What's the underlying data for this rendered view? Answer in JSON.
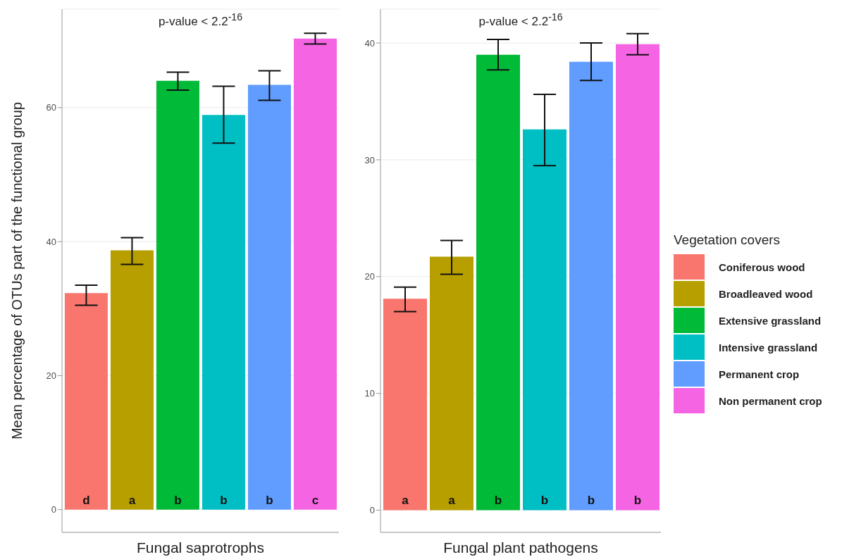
{
  "chart_data": [
    {
      "type": "bar",
      "xlabel": "Fungal saprotrophs",
      "ylabel": "Mean percentage of OTUs part of the functional group",
      "categories": [
        null
      ],
      "series": [
        {
          "color": "#f8766d",
          "values": [
            32.3
          ],
          "errors": [
            [
              30.5,
              33.5
            ]
          ]
        },
        {
          "color": "#b79f00",
          "values": [
            38.7
          ],
          "errors": [
            [
              36.6,
              40.6
            ]
          ]
        },
        {
          "color": "#00ba38",
          "values": [
            64.0
          ],
          "errors": [
            [
              62.6,
              65.3
            ]
          ]
        },
        {
          "color": "#00bfc4",
          "values": [
            58.9
          ],
          "errors": [
            [
              54.7,
              63.2
            ]
          ]
        },
        {
          "color": "#619cff",
          "values": [
            63.4
          ],
          "errors": [
            [
              61.1,
              65.5
            ]
          ]
        },
        {
          "color": "#f564e3",
          "values": [
            70.3
          ],
          "errors": [
            [
              69.5,
              71.1
            ]
          ]
        }
      ],
      "ylim": [
        -3.4,
        74.7
      ],
      "yticks": [
        0,
        20,
        40,
        60
      ],
      "grid": true,
      "tick_labels": "y",
      "annotations": [
        "p-value < 2.2$^{-16}$",
        "d",
        "a",
        "b",
        "b",
        "b",
        "c"
      ]
    },
    {
      "type": "bar",
      "xlabel": "Fungal plant pathogens",
      "legend_title": "Vegetation covers",
      "categories": [
        null
      ],
      "series": [
        {
          "name": "Coniferous wood",
          "color": "#f8766d",
          "values": [
            18.1
          ],
          "errors": [
            [
              17.0,
              19.1
            ]
          ]
        },
        {
          "name": "Broadleaved wood",
          "color": "#b79f00",
          "values": [
            21.7
          ],
          "errors": [
            [
              20.2,
              23.1
            ]
          ]
        },
        {
          "name": "Extensive grassland",
          "color": "#00ba38",
          "values": [
            39.0
          ],
          "errors": [
            [
              37.7,
              40.3
            ]
          ]
        },
        {
          "name": "Intensive grassland",
          "color": "#00bfc4",
          "values": [
            32.6
          ],
          "errors": [
            [
              29.5,
              35.6
            ]
          ]
        },
        {
          "name": "Permanent crop",
          "color": "#619cff",
          "values": [
            38.4
          ],
          "errors": [
            [
              36.8,
              40.0
            ]
          ]
        },
        {
          "name": "Non permanent crop",
          "color": "#f564e3",
          "values": [
            39.9
          ],
          "errors": [
            [
              39.0,
              40.8
            ]
          ]
        }
      ],
      "ylim": [
        -1.9,
        42.9
      ],
      "yticks": [
        0,
        10,
        20,
        30,
        40
      ],
      "grid": true,
      "tick_labels": "y",
      "legend": "right",
      "annotations": [
        "p-value < 2.2$^{-16}$",
        "a",
        "a",
        "b",
        "b",
        "b",
        "b"
      ]
    }
  ]
}
